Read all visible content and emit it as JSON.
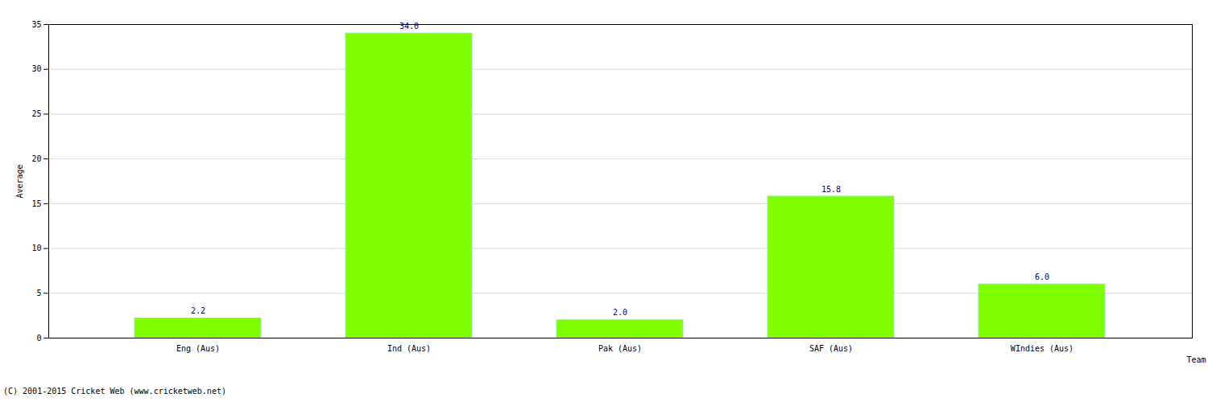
{
  "chart_data": {
    "type": "bar",
    "caption": "(C) 2001-2015 Cricket Web (www.cricketweb.net)",
    "x_label": "Team",
    "y_label": "Average",
    "categories": [
      "Eng (Aus)",
      "Ind (Aus)",
      "Pak (Aus)",
      "SAF (Aus)",
      "WIndies (Aus)"
    ],
    "values": [
      2.2,
      34.0,
      2.0,
      15.8,
      6.0
    ],
    "value_labels": [
      "2.2",
      "34.0",
      "2.0",
      "15.8",
      "6.0"
    ],
    "color": "#80ff00",
    "ylim": [
      0,
      35
    ],
    "yticks": [
      0,
      5,
      10,
      15,
      20,
      25,
      30,
      35
    ],
    "grid": true,
    "data_labels": true
  }
}
